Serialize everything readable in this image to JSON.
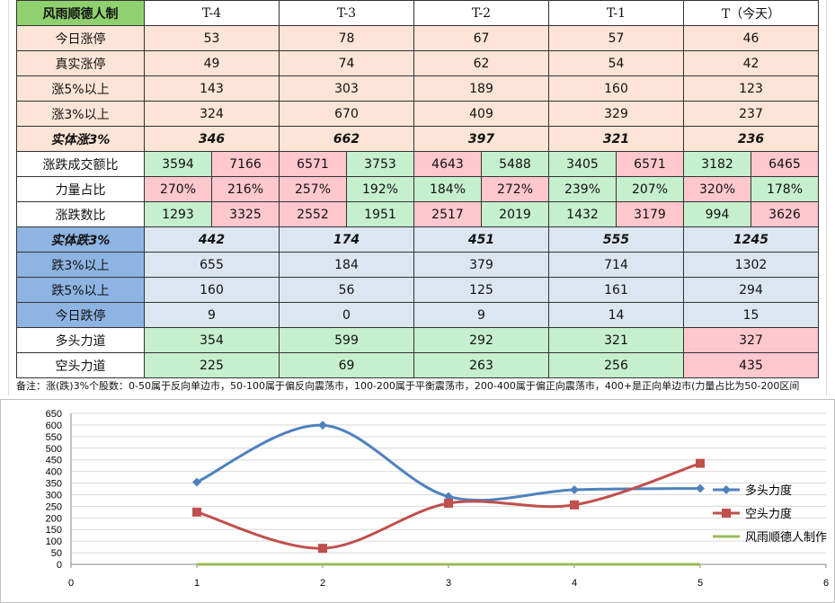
{
  "table": {
    "title": "风雨顺德人制",
    "headers": [
      "T-4",
      "T-3",
      "T-2",
      "T-1",
      "T（今天）"
    ],
    "rows_top": [
      {
        "label": "今日涨停",
        "values": [
          "53",
          "78",
          "67",
          "57",
          "46"
        ]
      },
      {
        "label": "真实涨停",
        "values": [
          "49",
          "74",
          "62",
          "54",
          "42"
        ]
      },
      {
        "label": "涨5%以上",
        "values": [
          "143",
          "303",
          "189",
          "160",
          "123"
        ]
      },
      {
        "label": "涨3%以上",
        "values": [
          "324",
          "670",
          "409",
          "329",
          "237"
        ]
      },
      {
        "label": "实体涨3%",
        "values": [
          "346",
          "662",
          "397",
          "321",
          "236"
        ]
      }
    ],
    "rows_pair": [
      {
        "label": "涨跌成交额比",
        "values": [
          "3594",
          "7166",
          "6571",
          "3753",
          "4643",
          "5488",
          "3405",
          "6571",
          "3182",
          "6465"
        ]
      },
      {
        "label": "力量占比",
        "values": [
          "270%",
          "216%",
          "257%",
          "192%",
          "184%",
          "272%",
          "239%",
          "207%",
          "320%",
          "178%"
        ]
      },
      {
        "label": "涨跌数比",
        "values": [
          "1293",
          "3325",
          "2552",
          "1951",
          "2517",
          "2019",
          "1432",
          "3179",
          "994",
          "3626"
        ]
      }
    ],
    "rows_bottom": [
      {
        "label": "实体跌3%",
        "values": [
          "442",
          "174",
          "451",
          "555",
          "1245"
        ]
      },
      {
        "label": "跌3%以上",
        "values": [
          "655",
          "184",
          "379",
          "714",
          "1302"
        ]
      },
      {
        "label": "跌5%以上",
        "values": [
          "160",
          "56",
          "125",
          "161",
          "294"
        ]
      },
      {
        "label": "今日跌停",
        "values": [
          "9",
          "0",
          "9",
          "14",
          "15"
        ]
      }
    ],
    "rows_force": [
      {
        "label": "多头力道",
        "values": [
          "354",
          "599",
          "292",
          "321",
          "327"
        ]
      },
      {
        "label": "空头力道",
        "values": [
          "225",
          "69",
          "263",
          "256",
          "435"
        ]
      }
    ]
  },
  "note": "备注：涨(跌)3%个股数：0-50属于反向单边市，50-100属于偏反向震荡市，100-200属于平衡震荡市，200-400属于偏正向震荡市，400+是正向单边市(力量占比为50-200区间",
  "colors": {
    "bull": "#4f81bd",
    "bear": "#c0504d",
    "third": "#9bbb59"
  },
  "chart_data": {
    "type": "line",
    "x": [
      1,
      2,
      3,
      4,
      5
    ],
    "xlim": [
      0,
      6
    ],
    "ylim": [
      0,
      650
    ],
    "xticks": [
      "0",
      "1",
      "2",
      "3",
      "4",
      "5",
      "6"
    ],
    "yticks": [
      "0",
      "50",
      "100",
      "150",
      "200",
      "250",
      "300",
      "350",
      "400",
      "450",
      "500",
      "550",
      "600",
      "650"
    ],
    "series": [
      {
        "name": "多头力度",
        "values": [
          354,
          599,
          292,
          321,
          327
        ],
        "marker": "diamond"
      },
      {
        "name": "空头力度",
        "values": [
          225,
          69,
          263,
          256,
          435
        ],
        "marker": "square"
      },
      {
        "name": "风雨顺德人制作",
        "values": [
          0,
          0,
          0,
          0,
          0
        ],
        "marker": "none"
      }
    ],
    "grid": "horizontal",
    "legend": "right"
  }
}
